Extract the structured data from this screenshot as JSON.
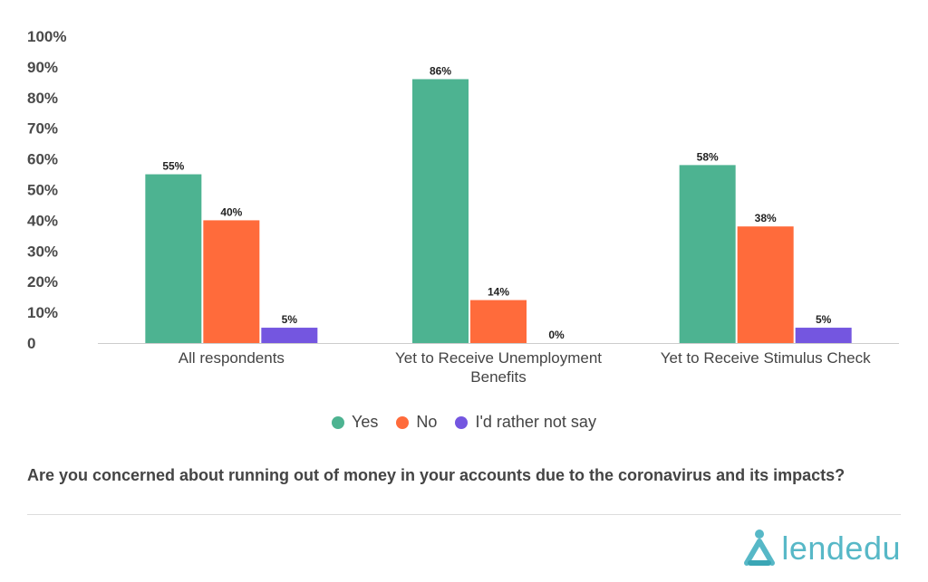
{
  "chart_data": {
    "type": "bar",
    "categories": [
      "All respondents",
      "Yet to Receive Unemployment Benefits",
      "Yet to Receive Stimulus Check"
    ],
    "category_lines": [
      [
        "All respondents"
      ],
      [
        "Yet to Receive Unemployment",
        "Benefits"
      ],
      [
        "Yet to Receive Stimulus Check"
      ]
    ],
    "series": [
      {
        "name": "Yes",
        "color": "#4db391",
        "values": [
          55,
          86,
          58
        ],
        "labels": [
          "55%",
          "86%",
          "58%"
        ]
      },
      {
        "name": "No",
        "color": "#ff6b3b",
        "values": [
          40,
          14,
          38
        ],
        "labels": [
          "40%",
          "14%",
          "38%"
        ]
      },
      {
        "name": "I'd rather not say",
        "color": "#7456e0",
        "values": [
          5,
          0,
          5
        ],
        "labels": [
          "5%",
          "0%",
          "5%"
        ]
      }
    ],
    "ylim": [
      0,
      100
    ],
    "yticks": [
      0,
      10,
      20,
      30,
      40,
      50,
      60,
      70,
      80,
      90,
      100
    ],
    "ytick_labels": [
      "0",
      "10%",
      "20%",
      "30%",
      "40%",
      "50%",
      "60%",
      "70%",
      "80%",
      "90%",
      "100%"
    ],
    "legend_position": "bottom",
    "grid": false
  },
  "question": "Are you concerned about running out of money in your accounts due to the coronavirus and its impacts?",
  "logo": {
    "text": "lendedu",
    "color": "#57b8c7"
  }
}
